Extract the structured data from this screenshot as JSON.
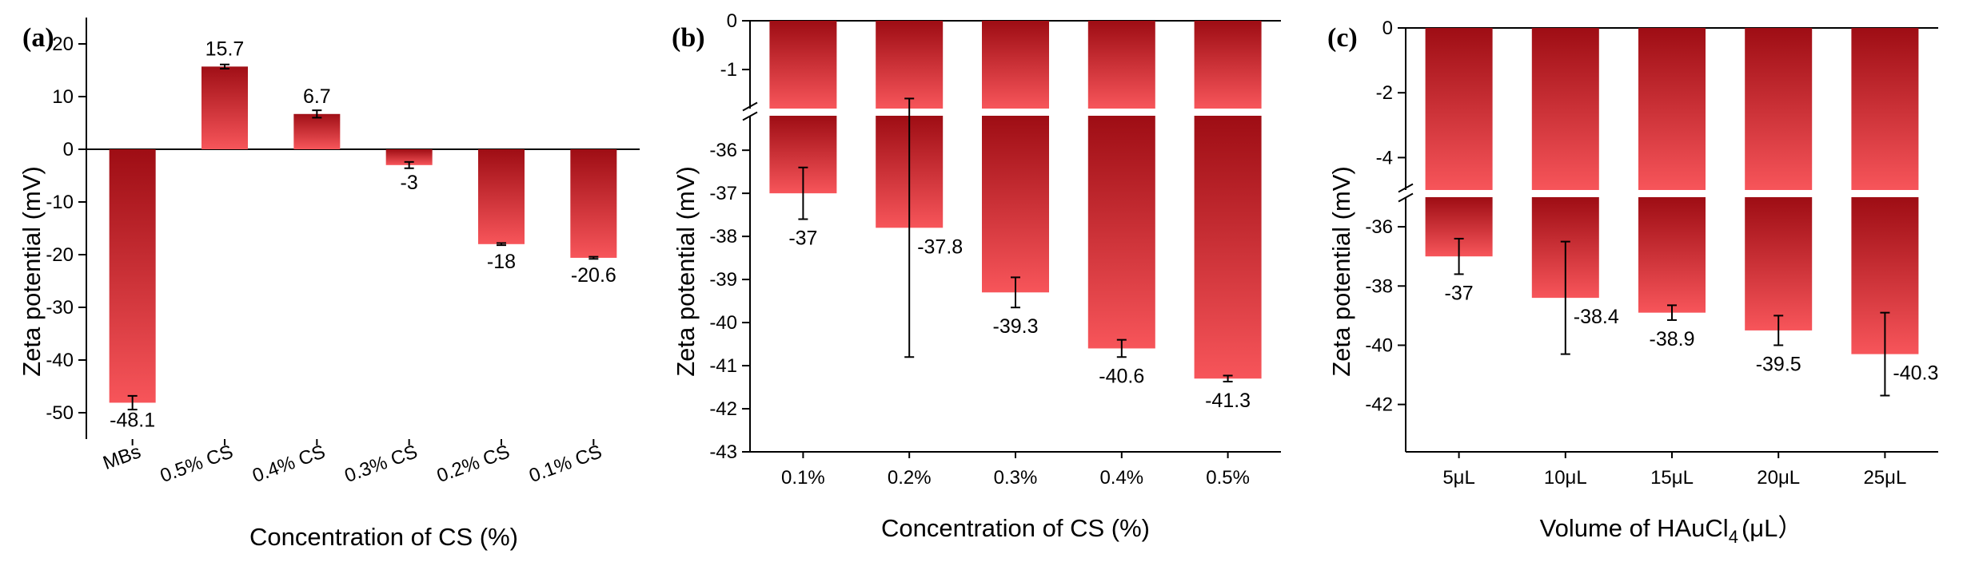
{
  "chart_data": [
    {
      "panel": "(a)",
      "type": "bar",
      "xlabel": "Concentration of CS (%)",
      "ylabel": "Zeta potential (mV)",
      "ylim": [
        -55,
        25
      ],
      "yticks": [
        "20",
        "10",
        "0",
        "-10",
        "-20",
        "-30",
        "-40",
        "-50"
      ],
      "tick_values": [
        20,
        10,
        0,
        -10,
        -20,
        -30,
        -40,
        -50
      ],
      "categories": [
        "MBs",
        "0.5% CS",
        "0.4% CS",
        "0.3% CS",
        "0.2% CS",
        "0.1% CS"
      ],
      "values": [
        -48.1,
        15.7,
        6.7,
        -3,
        -18,
        -20.6
      ],
      "errors": [
        1.3,
        0.4,
        0.7,
        0.6,
        0.2,
        0.2
      ],
      "labels": [
        "-48.1",
        "15.7",
        "6.7",
        "-3",
        "-18",
        "-20.6"
      ]
    },
    {
      "panel": "(b)",
      "type": "bar",
      "broken_axis": true,
      "xlabel": "Concentration of CS (%)",
      "ylabel": "Zeta potential (mV)",
      "upper_ylim": [
        -1.8,
        0
      ],
      "lower_ylim": [
        -43,
        -35.2
      ],
      "upper_ticks": [
        "0",
        "-1"
      ],
      "upper_tick_values": [
        0,
        -1
      ],
      "lower_ticks": [
        "-36",
        "-37",
        "-38",
        "-39",
        "-40",
        "-41",
        "-42",
        "-43"
      ],
      "lower_tick_values": [
        -36,
        -37,
        -38,
        -39,
        -40,
        -41,
        -42,
        -43
      ],
      "categories": [
        "0.1%",
        "0.2%",
        "0.3%",
        "0.4%",
        "0.5%"
      ],
      "values": [
        -37,
        -37.8,
        -39.3,
        -40.6,
        -41.3
      ],
      "errors": [
        0.6,
        3.0,
        0.35,
        0.2,
        0.07
      ],
      "labels": [
        "-37",
        "-37.8",
        "-39.3",
        "-40.6",
        "-41.3"
      ]
    },
    {
      "panel": "(c)",
      "type": "bar",
      "broken_axis": true,
      "xlabel_main": "Volume of HAuCl",
      "xlabel_sub": "4",
      "xlabel_end": "(μL）",
      "ylabel": "Zeta potential (mV)",
      "upper_ylim": [
        -5,
        0
      ],
      "lower_ylim": [
        -43.6,
        -35
      ],
      "upper_ticks": [
        "0",
        "-2",
        "-4"
      ],
      "upper_tick_values": [
        0,
        -2,
        -4
      ],
      "lower_ticks": [
        "-36",
        "-38",
        "-40",
        "-42"
      ],
      "lower_tick_values": [
        -36,
        -38,
        -40,
        -42
      ],
      "categories": [
        "5μL",
        "10μL",
        "15μL",
        "20μL",
        "25μL"
      ],
      "values": [
        -37,
        -38.4,
        -38.9,
        -39.5,
        -40.3
      ],
      "errors": [
        0.6,
        1.9,
        0.25,
        0.5,
        1.4
      ],
      "labels": [
        "-37",
        "-38.4",
        "-38.9",
        "-39.5",
        "-40.3"
      ]
    }
  ],
  "colors": {
    "bar_dark": "#9e0d14",
    "bar_light": "#f7555a",
    "axis": "#000000"
  }
}
